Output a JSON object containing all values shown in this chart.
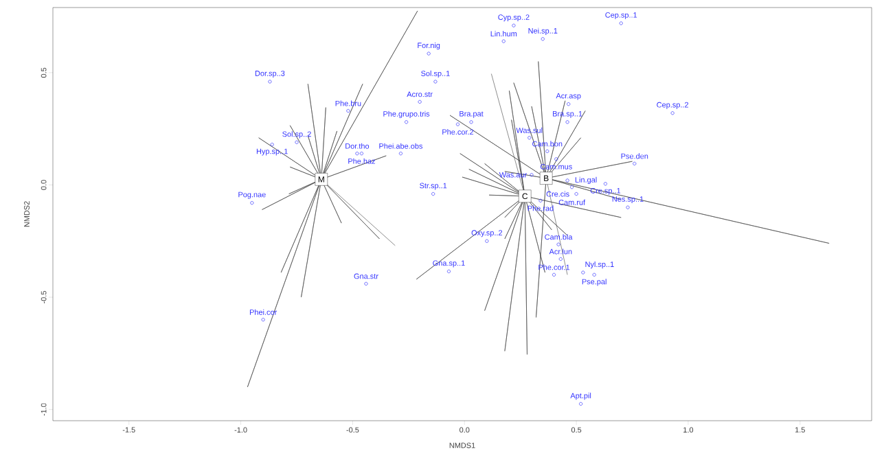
{
  "chart_data": {
    "type": "scatter",
    "xlabel": "NMDS1",
    "ylabel": "NMDS2",
    "xlim": [
      -1.84,
      1.82
    ],
    "ylim": [
      -1.05,
      0.79
    ],
    "xticks": [
      -1.5,
      {
        "value": -1,
        "label": "-1.0"
      },
      -0.5,
      {
        "value": 0,
        "label": "0.0"
      },
      0.5,
      {
        "value": 1,
        "label": "1.0"
      },
      1.5
    ],
    "yticks": [
      {
        "value": -1,
        "label": "-1.0"
      },
      -0.5,
      {
        "value": 0,
        "label": "0.0"
      },
      0.5
    ],
    "series": [
      {
        "name": "M",
        "type": "line",
        "color": "#404040",
        "x": [
          -0.64,
          -0.7,
          -0.64,
          -0.62,
          -0.64,
          -0.455,
          -0.64,
          -0.21,
          -0.64,
          -0.57,
          -0.64,
          -0.7,
          -0.64,
          -0.78,
          -0.64,
          -0.92,
          -0.64,
          -0.78,
          -0.64,
          -0.35,
          -0.64,
          -0.785,
          -0.64,
          -0.905,
          -0.64,
          -0.82,
          -0.64,
          -0.73,
          -0.64,
          -0.97,
          -0.64,
          -0.55,
          -0.64,
          -0.38,
          -0.64,
          -0.31
        ],
        "values": [
          0.025,
          0.45,
          0.025,
          0.345,
          0.025,
          0.45,
          0.025,
          0.775,
          0.025,
          0.24,
          0.025,
          0.22,
          0.025,
          0.265,
          0.025,
          0.21,
          0.025,
          0.08,
          0.025,
          0.13,
          0.025,
          -0.04,
          0.025,
          -0.11,
          0.025,
          -0.39,
          0.025,
          -0.5,
          0.025,
          -0.9,
          0.025,
          -0.17,
          0.025,
          -0.24,
          0.025,
          -0.27
        ]
      },
      {
        "name": "C",
        "type": "line",
        "color": "#404040",
        "x": [
          0.27,
          -0.01,
          0.27,
          0.02,
          0.27,
          0.09,
          0.27,
          -0.02,
          0.27,
          0.11,
          0.27,
          0.18,
          0.27,
          0.18,
          0.27,
          -0.215,
          0.27,
          0.09,
          0.27,
          0.18,
          0.27,
          0.28,
          0.27,
          0.36,
          0.27,
          0.39,
          0.27,
          0.46,
          0.27,
          0.7,
          0.27,
          0.21,
          0.27,
          0.2,
          0.27,
          0.12
        ],
        "values": [
          -0.05,
          0.035,
          -0.05,
          0.07,
          -0.05,
          0.095,
          -0.05,
          0.14,
          -0.05,
          -0.045,
          -0.05,
          -0.145,
          -0.05,
          -0.24,
          -0.05,
          -0.42,
          -0.05,
          -0.56,
          -0.05,
          -0.74,
          -0.05,
          -0.755,
          -0.05,
          -0.39,
          -0.05,
          -0.2,
          -0.05,
          -0.225,
          -0.05,
          -0.145,
          -0.05,
          0.29,
          -0.05,
          0.42,
          -0.05,
          0.495
        ]
      },
      {
        "name": "B",
        "type": "line",
        "color": "#404040",
        "x": [
          0.365,
          0.33,
          0.365,
          0.22,
          0.365,
          0.3,
          0.365,
          0.45,
          0.365,
          0.54,
          0.365,
          0.52,
          0.365,
          -0.065,
          0.365,
          0.18,
          0.365,
          0.75,
          0.365,
          1.63,
          0.365,
          0.7,
          0.365,
          0.32,
          0.365,
          0.46
        ],
        "values": [
          0.03,
          0.55,
          0.03,
          0.455,
          0.03,
          0.35,
          0.03,
          0.375,
          0.03,
          0.33,
          0.03,
          0.21,
          0.03,
          0.31,
          0.03,
          0.06,
          0.03,
          0.105,
          0.03,
          -0.26,
          0.03,
          -0.065,
          0.03,
          -0.59,
          0.03,
          -0.4
        ]
      },
      {
        "color": "#3333ff",
        "marker": "circle",
        "x": [
          -0.87,
          -0.52,
          -0.75,
          -0.86,
          -0.48,
          -0.46,
          -0.95,
          -0.9,
          -0.44,
          -0.16,
          -0.13,
          -0.2,
          -0.26,
          -0.03,
          0.03,
          -0.285,
          -0.14,
          0.22,
          0.175,
          0.35,
          0.7,
          0.465,
          0.46,
          0.93,
          0.29,
          0.37,
          0.41,
          0.76,
          0.46,
          0.63,
          0.48,
          0.5,
          0.34,
          0.42,
          0.43,
          0.4,
          0.53,
          0.58,
          0.1,
          -0.07,
          0.52,
          0.73,
          0.3
        ],
        "values": [
          0.46,
          0.33,
          0.19,
          0.18,
          0.14,
          0.14,
          -0.08,
          -0.6,
          -0.44,
          0.585,
          0.46,
          0.37,
          0.28,
          0.27,
          0.28,
          0.14,
          -0.04,
          0.71,
          0.64,
          0.65,
          0.72,
          0.36,
          0.28,
          0.32,
          0.21,
          0.15,
          0.115,
          0.095,
          0.02,
          0.005,
          -0.01,
          -0.04,
          -0.07,
          -0.265,
          -0.33,
          -0.4,
          -0.39,
          -0.4,
          -0.25,
          -0.385,
          -0.975,
          -0.1,
          0.045
        ]
      }
    ],
    "annotations": [
      {
        "text": "Dor.sp..3",
        "x": -0.87,
        "y": 0.46
      },
      {
        "text": "Phe.bru",
        "x": -0.52,
        "y": 0.33
      },
      {
        "text": "Sol.sp..2",
        "x": -0.75,
        "y": 0.19
      },
      {
        "text": "Hyp.sp..1",
        "x": -0.86,
        "y": 0.18
      },
      {
        "text": "Dor.tho",
        "x": -0.48,
        "y": 0.14
      },
      {
        "text": "Phe.haz",
        "x": -0.46,
        "y": 0.14
      },
      {
        "text": "Pog.nae",
        "x": -0.95,
        "y": -0.08
      },
      {
        "text": "Phei.cor",
        "x": -0.9,
        "y": -0.6
      },
      {
        "text": "Gna.str",
        "x": -0.44,
        "y": -0.44
      },
      {
        "text": "For.nig",
        "x": -0.16,
        "y": 0.585
      },
      {
        "text": "Sol.sp..1",
        "x": -0.13,
        "y": 0.46
      },
      {
        "text": "Acro.str",
        "x": -0.2,
        "y": 0.37
      },
      {
        "text": "Phe.grupo.tris",
        "x": -0.26,
        "y": 0.28
      },
      {
        "text": "Phe.cor.2",
        "x": -0.03,
        "y": 0.27
      },
      {
        "text": "Bra.pat",
        "x": 0.03,
        "y": 0.28
      },
      {
        "text": "Phei.abe.obs",
        "x": -0.285,
        "y": 0.14
      },
      {
        "text": "Str.sp..1",
        "x": -0.14,
        "y": -0.04
      },
      {
        "text": "Cyp.sp..2",
        "x": 0.22,
        "y": 0.71
      },
      {
        "text": "Lin.hum",
        "x": 0.175,
        "y": 0.64
      },
      {
        "text": "Nei.sp..1",
        "x": 0.35,
        "y": 0.65
      },
      {
        "text": "Cep.sp..1",
        "x": 0.7,
        "y": 0.72
      },
      {
        "text": "Acr.asp",
        "x": 0.465,
        "y": 0.36
      },
      {
        "text": "Bra.sp..1",
        "x": 0.46,
        "y": 0.28
      },
      {
        "text": "Cep.sp..2",
        "x": 0.93,
        "y": 0.32
      },
      {
        "text": "Was.sul",
        "x": 0.29,
        "y": 0.21
      },
      {
        "text": "Cam.bon",
        "x": 0.37,
        "y": 0.15
      },
      {
        "text": "Cam.mus",
        "x": 0.41,
        "y": 0.115
      },
      {
        "text": "Pse.den",
        "x": 0.76,
        "y": 0.095
      },
      {
        "text": "Lin.gal",
        "x": 0.46,
        "y": 0.02
      },
      {
        "text": "Cre.sp..1",
        "x": 0.63,
        "y": 0.005
      },
      {
        "text": "Cam.ruf",
        "x": 0.48,
        "y": -0.01
      },
      {
        "text": "Cre.cis",
        "x": 0.5,
        "y": -0.04
      },
      {
        "text": "Phe.rad",
        "x": 0.34,
        "y": -0.07
      },
      {
        "text": "Cam.bla",
        "x": 0.42,
        "y": -0.265
      },
      {
        "text": "Acr.lun",
        "x": 0.43,
        "y": -0.33
      },
      {
        "text": "Phe.cor.1",
        "x": 0.4,
        "y": -0.4
      },
      {
        "text": "Nyl.sp..1",
        "x": 0.53,
        "y": -0.39
      },
      {
        "text": "Pse.pal",
        "x": 0.58,
        "y": -0.4
      },
      {
        "text": "Oxy.sp..2",
        "x": 0.1,
        "y": -0.25
      },
      {
        "text": "Gna.sp..1",
        "x": -0.07,
        "y": -0.385
      },
      {
        "text": "Apt.pil",
        "x": 0.52,
        "y": -0.975
      },
      {
        "text": "Nes.sp..1",
        "x": 0.73,
        "y": -0.1
      },
      {
        "text": "Was.aur",
        "x": 0.3,
        "y": 0.045
      }
    ]
  }
}
